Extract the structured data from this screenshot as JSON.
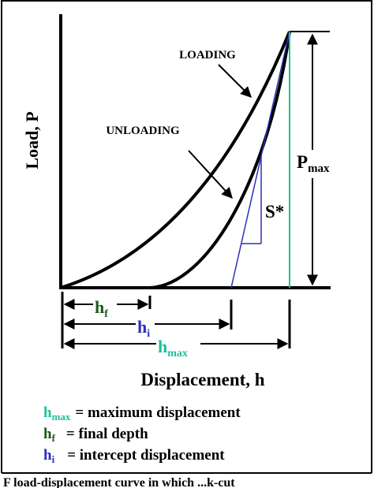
{
  "axes": {
    "y_label": "Load, P",
    "x_label": "Displacement, h"
  },
  "curves": {
    "loading_label": "LOADING",
    "unloading_label": "UNLOADING"
  },
  "annotations": {
    "stiffness": "S*",
    "pmax": {
      "main": "P",
      "sub": "max"
    },
    "hf": {
      "main": "h",
      "sub": "f"
    },
    "hi": {
      "main": "h",
      "sub": "i"
    },
    "hmax": {
      "main": "h",
      "sub": "max"
    }
  },
  "legend": [
    {
      "sym_main": "h",
      "sym_sub": "max",
      "text": "= maximum displacement",
      "color": "#1fbf99"
    },
    {
      "sym_main": "h",
      "sym_sub": "f",
      "text": "= final depth",
      "color": "#1d5a16"
    },
    {
      "sym_main": "h",
      "sym_sub": "i",
      "text": "= intercept displacement",
      "color": "#2e2fb8"
    }
  ],
  "caption": "F  load-displacement curve in which ...k-cut",
  "colors": {
    "hmax": "#1fbf99",
    "hf": "#1d5a16",
    "hi": "#2e2fb8",
    "ink": "#000000"
  }
}
